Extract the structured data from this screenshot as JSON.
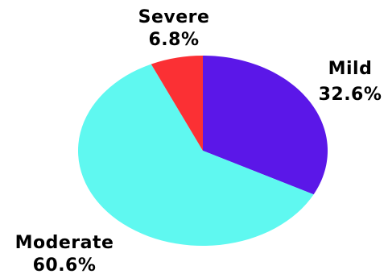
{
  "chart_data": {
    "type": "pie",
    "title": "",
    "categories": [
      "Mild",
      "Moderate",
      "Severe"
    ],
    "values": [
      32.6,
      60.6,
      6.8
    ],
    "value_labels": [
      "32.6%",
      "60.6%",
      "6.8%"
    ],
    "colors": [
      "#5b17e8",
      "#5ff8f0",
      "#fb3034"
    ],
    "start_angle_deg": 0,
    "direction": "clockwise",
    "legend": "none",
    "labels_position": "outside"
  }
}
